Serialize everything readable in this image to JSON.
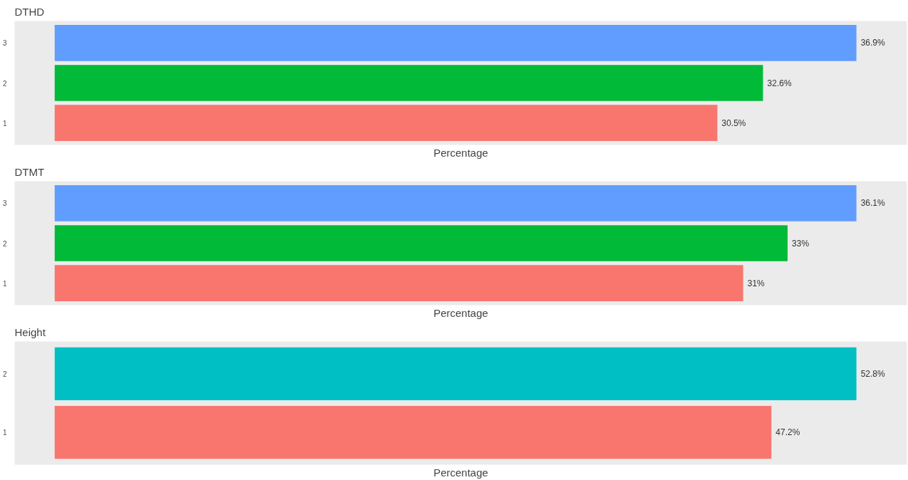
{
  "chart_data": [
    {
      "type": "bar",
      "orientation": "horizontal",
      "title": "DTHD",
      "xlabel": "Percentage",
      "categories": [
        "3",
        "2",
        "1"
      ],
      "values": [
        36.9,
        32.6,
        30.5
      ],
      "colors": [
        "#619cff",
        "#00ba38",
        "#f8766d"
      ],
      "value_labels": [
        "36.9%",
        "32.6%",
        "30.5%"
      ],
      "tick_labels": "y"
    },
    {
      "type": "bar",
      "orientation": "horizontal",
      "title": "DTMT",
      "xlabel": "Percentage",
      "categories": [
        "3",
        "2",
        "1"
      ],
      "values": [
        36.1,
        33,
        31
      ],
      "colors": [
        "#619cff",
        "#00ba38",
        "#f8766d"
      ],
      "value_labels": [
        "36.1%",
        "33%",
        "31%"
      ],
      "tick_labels": "y"
    },
    {
      "type": "bar",
      "orientation": "horizontal",
      "title": "Height",
      "xlabel": "Percentage",
      "categories": [
        "2",
        "1"
      ],
      "values": [
        52.8,
        47.2
      ],
      "colors": [
        "#00bfc4",
        "#f8766d"
      ],
      "value_labels": [
        "52.8%",
        "47.2%"
      ],
      "tick_labels": "y"
    }
  ]
}
